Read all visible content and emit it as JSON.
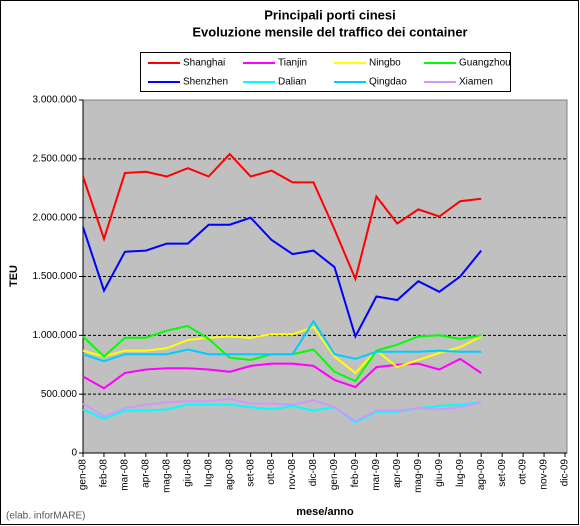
{
  "chart_data": {
    "type": "line",
    "title": "Principali porti cinesi",
    "subtitle": "Evoluzione mensile del traffico dei container",
    "xlabel": "mese/anno",
    "ylabel": "TEU",
    "note": "(elab. inforMARE)",
    "categories": [
      "gen-08",
      "feb-08",
      "mar-08",
      "apr-08",
      "mag-08",
      "giu-08",
      "lug-08",
      "ago-08",
      "set-08",
      "ott-08",
      "nov-08",
      "dic-08",
      "gen-09",
      "feb-09",
      "mar-09",
      "apr-09",
      "mag-09",
      "giu-09",
      "lug-09",
      "ago-09",
      "set-09",
      "ott-09",
      "nov-09",
      "dic-09"
    ],
    "ylim": [
      0,
      3000000
    ],
    "yticks": [
      0,
      {
        "value": 500000,
        "label": "500.000"
      },
      {
        "value": 1000000,
        "label": "1.000.000"
      },
      {
        "value": 1500000,
        "label": "1.500.000"
      },
      {
        "value": 2000000,
        "label": "2.000.000"
      },
      {
        "value": 2500000,
        "label": "2.500.000"
      },
      {
        "value": 3000000,
        "label": "3.000.000"
      }
    ],
    "grid": true,
    "series": [
      {
        "name": "Shanghai",
        "color": "#ff0000",
        "values": [
          2350000,
          1820000,
          2380000,
          2390000,
          2350000,
          2420000,
          2350000,
          2540000,
          2350000,
          2400000,
          2300000,
          2300000,
          1900000,
          1480000,
          2180000,
          1950000,
          2070000,
          2010000,
          2140000,
          2160000,
          null,
          null,
          null,
          null
        ]
      },
      {
        "name": "Tianjin",
        "color": "#ff00ff",
        "values": [
          650000,
          550000,
          680000,
          710000,
          720000,
          720000,
          710000,
          690000,
          740000,
          760000,
          760000,
          740000,
          620000,
          560000,
          730000,
          750000,
          760000,
          710000,
          800000,
          680000,
          null,
          null,
          null,
          null
        ]
      },
      {
        "name": "Ningbo",
        "color": "#ffff00",
        "values": [
          870000,
          820000,
          870000,
          870000,
          890000,
          960000,
          980000,
          990000,
          980000,
          1010000,
          1010000,
          1070000,
          820000,
          680000,
          870000,
          730000,
          790000,
          850000,
          900000,
          990000,
          null,
          null,
          null,
          null
        ]
      },
      {
        "name": "Guangzhou",
        "color": "#00ff00",
        "values": [
          990000,
          820000,
          980000,
          980000,
          1040000,
          1080000,
          970000,
          810000,
          790000,
          840000,
          840000,
          880000,
          690000,
          610000,
          870000,
          920000,
          990000,
          1000000,
          970000,
          1000000,
          null,
          null,
          null,
          null
        ]
      },
      {
        "name": "Shenzhen",
        "color": "#0000ff",
        "values": [
          1920000,
          1380000,
          1710000,
          1720000,
          1780000,
          1780000,
          1940000,
          1940000,
          2000000,
          1810000,
          1690000,
          1720000,
          1580000,
          990000,
          1330000,
          1300000,
          1460000,
          1370000,
          1500000,
          1720000,
          null,
          null,
          null,
          null
        ]
      },
      {
        "name": "Dalian",
        "color": "#00ffff",
        "values": [
          370000,
          290000,
          360000,
          360000,
          370000,
          410000,
          410000,
          410000,
          390000,
          370000,
          400000,
          360000,
          390000,
          260000,
          350000,
          350000,
          380000,
          400000,
          410000,
          430000,
          null,
          null,
          null,
          null
        ]
      },
      {
        "name": "Qingdao",
        "color": "#00ccff",
        "values": [
          840000,
          780000,
          840000,
          840000,
          840000,
          880000,
          840000,
          840000,
          840000,
          840000,
          840000,
          1120000,
          840000,
          800000,
          860000,
          860000,
          860000,
          870000,
          860000,
          860000,
          null,
          null,
          null,
          null
        ]
      },
      {
        "name": "Xiamen",
        "color": "#cc99ff",
        "values": [
          420000,
          310000,
          380000,
          410000,
          430000,
          440000,
          440000,
          460000,
          420000,
          420000,
          410000,
          450000,
          390000,
          270000,
          360000,
          360000,
          380000,
          370000,
          390000,
          430000,
          null,
          null,
          null,
          null
        ]
      }
    ]
  }
}
